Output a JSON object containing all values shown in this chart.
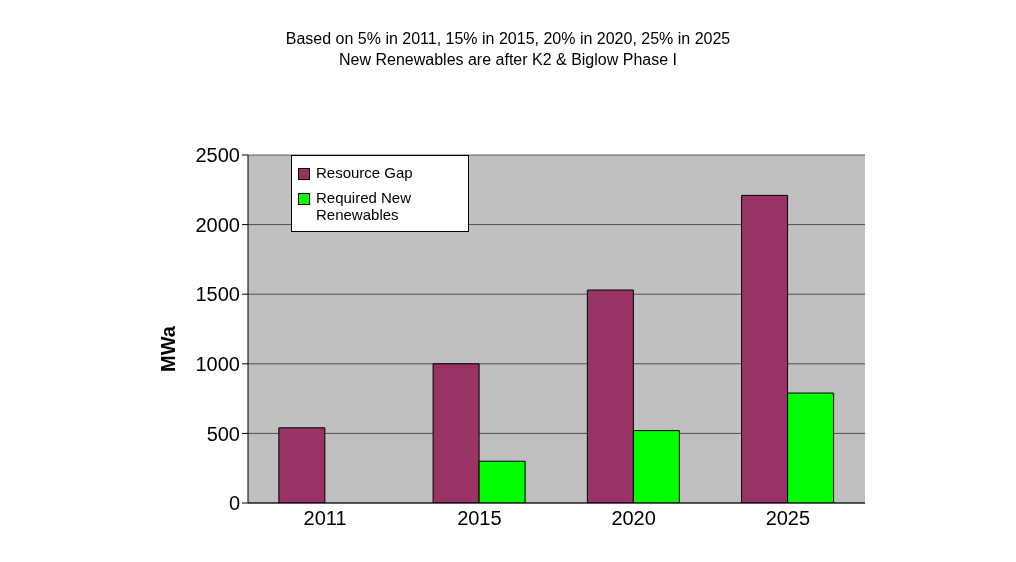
{
  "chart_data": {
    "type": "bar",
    "title": "Based on 5% in 2011, 15% in 2015, 20% in 2020, 25% in 2025",
    "subtitle": "New Renewables are after K2 & Biglow Phase I",
    "ylabel": "MWa",
    "categories": [
      "2011",
      "2015",
      "2020",
      "2025"
    ],
    "series": [
      {
        "name": "Resource Gap",
        "color": "#993366",
        "values": [
          540,
          1000,
          1530,
          2210
        ]
      },
      {
        "name": "Required New Renewables",
        "color": "#00ff00",
        "values": [
          null,
          300,
          520,
          790
        ]
      }
    ],
    "ylim": [
      0,
      2500
    ],
    "yticks": [
      0,
      500,
      1000,
      1500,
      2000,
      2500
    ],
    "grid": "y",
    "legend": "top left"
  }
}
